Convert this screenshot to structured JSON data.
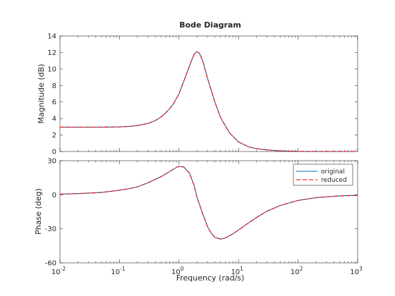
{
  "chart_data": [
    {
      "type": "line",
      "title": "Bode Diagram",
      "xlabel": "",
      "ylabel": "Magnitude (dB)",
      "xscale": "log",
      "xlim": [
        0.01,
        1000
      ],
      "ylim": [
        0,
        14
      ],
      "yticks": [
        0,
        2,
        4,
        6,
        8,
        10,
        12,
        14
      ],
      "grid": false,
      "x": [
        0.01,
        0.02,
        0.05,
        0.1,
        0.15,
        0.2,
        0.3,
        0.4,
        0.5,
        0.6,
        0.7,
        0.8,
        1.0,
        1.2,
        1.5,
        1.8,
        2.0,
        2.2,
        2.5,
        3.0,
        4.0,
        5.0,
        7.0,
        10,
        15,
        20,
        30,
        50,
        100,
        1000
      ],
      "series": [
        {
          "name": "original",
          "color": "#0072BD",
          "style": "solid",
          "values": [
            2.95,
            2.95,
            2.95,
            2.98,
            3.05,
            3.15,
            3.4,
            3.75,
            4.2,
            4.7,
            5.2,
            5.75,
            7.0,
            8.5,
            10.4,
            11.8,
            12.1,
            11.9,
            11.0,
            8.9,
            6.0,
            4.1,
            2.3,
            1.15,
            0.55,
            0.35,
            0.2,
            0.08,
            0.02,
            0.0
          ]
        },
        {
          "name": "reduced",
          "color": "#FF0000",
          "style": "dashed",
          "values": [
            2.95,
            2.95,
            2.95,
            2.98,
            3.05,
            3.15,
            3.4,
            3.75,
            4.2,
            4.7,
            5.2,
            5.75,
            7.0,
            8.5,
            10.4,
            11.8,
            12.1,
            11.9,
            11.0,
            8.9,
            6.0,
            4.1,
            2.3,
            1.15,
            0.55,
            0.35,
            0.2,
            0.08,
            0.02,
            0.0
          ]
        }
      ]
    },
    {
      "type": "line",
      "title": "",
      "xlabel": "Frequency  (rad/s)",
      "ylabel": "Phase (deg)",
      "xscale": "log",
      "xlim": [
        0.01,
        1000
      ],
      "ylim": [
        -60,
        30
      ],
      "yticks": [
        -60,
        -30,
        0,
        30
      ],
      "xticks": [
        0.01,
        0.1,
        1,
        10,
        100,
        1000
      ],
      "xticklabels": [
        {
          "base": "10",
          "exp": "-2"
        },
        {
          "base": "10",
          "exp": "-1"
        },
        {
          "base": "10",
          "exp": "0"
        },
        {
          "base": "10",
          "exp": "1"
        },
        {
          "base": "10",
          "exp": "2"
        },
        {
          "base": "10",
          "exp": "3"
        }
      ],
      "grid": false,
      "legend_position": "top-right",
      "x": [
        0.01,
        0.02,
        0.05,
        0.1,
        0.15,
        0.2,
        0.3,
        0.5,
        0.7,
        0.9,
        1.0,
        1.2,
        1.5,
        1.8,
        2.0,
        2.5,
        3.0,
        3.5,
        4.0,
        5.0,
        6.0,
        8.0,
        10,
        15,
        20,
        30,
        50,
        100,
        200,
        500,
        1000
      ],
      "series": [
        {
          "name": "original",
          "color": "#0072BD",
          "style": "solid",
          "values": [
            0.5,
            1.0,
            2.0,
            4.0,
            5.5,
            7.0,
            10.5,
            16.0,
            20.5,
            24.0,
            25.0,
            24.5,
            19.0,
            8.0,
            -2.0,
            -17.0,
            -28.0,
            -34.0,
            -37.5,
            -39.0,
            -38.0,
            -34.5,
            -31.0,
            -24.5,
            -20.0,
            -14.5,
            -9.5,
            -5.0,
            -2.5,
            -1.0,
            -0.5
          ]
        },
        {
          "name": "reduced",
          "color": "#FF0000",
          "style": "dashed",
          "values": [
            0.5,
            1.0,
            2.0,
            4.0,
            5.5,
            7.0,
            10.5,
            16.0,
            20.5,
            24.0,
            25.0,
            24.5,
            19.0,
            8.0,
            -2.0,
            -17.0,
            -28.0,
            -34.0,
            -37.5,
            -39.0,
            -38.0,
            -34.5,
            -31.0,
            -24.5,
            -20.0,
            -14.5,
            -9.5,
            -5.0,
            -2.5,
            -1.0,
            -0.5
          ]
        }
      ]
    }
  ]
}
